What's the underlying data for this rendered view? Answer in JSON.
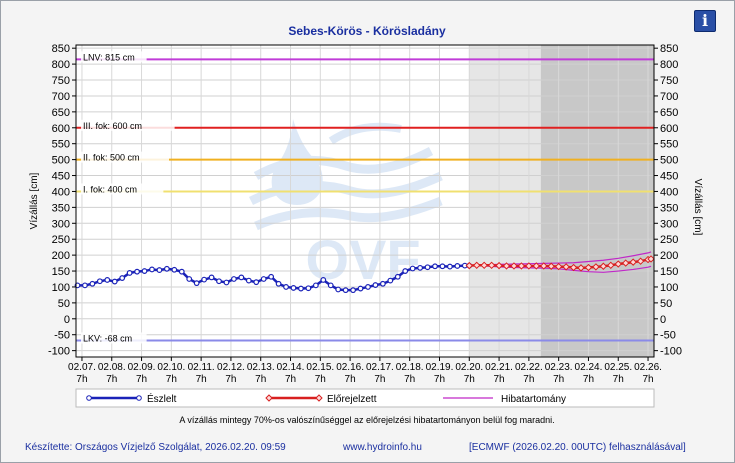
{
  "chart_data": {
    "type": "line",
    "title": "Sebes-Körös - Körösladány",
    "ylabel_left": "Vízállás [cm]",
    "ylabel_right": "Vízállás [cm]",
    "ylim": [
      -120,
      860
    ],
    "yticks": [
      850,
      800,
      750,
      700,
      650,
      600,
      550,
      500,
      450,
      400,
      350,
      300,
      250,
      200,
      150,
      100,
      50,
      0,
      -50,
      -100
    ],
    "xlim": [
      -0.2,
      19.2
    ],
    "xtick_labels": [
      {
        "date": "02.07.",
        "hour": "7h"
      },
      {
        "date": "02.08.",
        "hour": "7h"
      },
      {
        "date": "02.09.",
        "hour": "7h"
      },
      {
        "date": "02.10.",
        "hour": "7h"
      },
      {
        "date": "02.11.",
        "hour": "7h"
      },
      {
        "date": "02.12.",
        "hour": "7h"
      },
      {
        "date": "02.13.",
        "hour": "7h"
      },
      {
        "date": "02.14.",
        "hour": "7h"
      },
      {
        "date": "02.15.",
        "hour": "7h"
      },
      {
        "date": "02.16.",
        "hour": "7h"
      },
      {
        "date": "02.17.",
        "hour": "7h"
      },
      {
        "date": "02.18.",
        "hour": "7h"
      },
      {
        "date": "02.19.",
        "hour": "7h"
      },
      {
        "date": "02.20.",
        "hour": "7h"
      },
      {
        "date": "02.21.",
        "hour": "7h"
      },
      {
        "date": "02.22.",
        "hour": "7h"
      },
      {
        "date": "02.23.",
        "hour": "7h"
      },
      {
        "date": "02.24.",
        "hour": "7h"
      },
      {
        "date": "02.25.",
        "hour": "7h"
      },
      {
        "date": "02.26.",
        "hour": "7h"
      }
    ],
    "shaded_regions": [
      {
        "from": 13.0,
        "to": 15.4,
        "color": "#e6e6e6"
      },
      {
        "from": 15.4,
        "to": 19.2,
        "color": "#c8c8c8"
      }
    ],
    "thresholds": [
      {
        "label": "LNV: 815 cm",
        "value": 815,
        "color": "#c03cd8"
      },
      {
        "label": "III. fok: 600 cm",
        "value": 600,
        "color": "#e02020"
      },
      {
        "label": "II. fok: 500 cm",
        "value": 500,
        "color": "#f0b020"
      },
      {
        "label": "I. fok: 400 cm",
        "value": 400,
        "color": "#f0e070"
      },
      {
        "label": "LKV: -68 cm",
        "value": -68,
        "color": "#8a8ae8"
      }
    ],
    "series": [
      {
        "name": "Észlelt",
        "color": "#1a22b8",
        "x": [
          -0.15,
          0.1,
          0.35,
          0.6,
          0.85,
          1.1,
          1.35,
          1.6,
          1.85,
          2.1,
          2.35,
          2.6,
          2.85,
          3.1,
          3.35,
          3.6,
          3.85,
          4.1,
          4.35,
          4.6,
          4.85,
          5.1,
          5.35,
          5.6,
          5.85,
          6.1,
          6.35,
          6.6,
          6.85,
          7.1,
          7.35,
          7.6,
          7.85,
          8.1,
          8.35,
          8.6,
          8.85,
          9.1,
          9.35,
          9.6,
          9.85,
          10.1,
          10.35,
          10.6,
          10.85,
          11.1,
          11.35,
          11.6,
          11.85,
          12.1,
          12.35,
          12.6,
          12.85,
          13.0
        ],
        "y": [
          105,
          105,
          110,
          118,
          122,
          117,
          128,
          144,
          148,
          150,
          155,
          153,
          157,
          154,
          148,
          125,
          112,
          123,
          130,
          118,
          114,
          125,
          130,
          120,
          115,
          125,
          132,
          110,
          100,
          97,
          95,
          96,
          105,
          122,
          105,
          92,
          90,
          90,
          95,
          100,
          106,
          110,
          120,
          132,
          150,
          158,
          160,
          162,
          165,
          165,
          164,
          166,
          167,
          167
        ]
      },
      {
        "name": "Előrejelzett",
        "color": "#d82020",
        "x": [
          13.0,
          13.25,
          13.5,
          13.75,
          14.0,
          14.25,
          14.5,
          14.75,
          15.0,
          15.25,
          15.5,
          15.75,
          16.0,
          16.25,
          16.5,
          16.75,
          17.0,
          17.25,
          17.5,
          17.75,
          18.0,
          18.25,
          18.5,
          18.75,
          19.0,
          19.1
        ],
        "y": [
          167,
          168,
          168,
          168,
          167,
          166,
          166,
          166,
          166,
          166,
          166,
          165,
          164,
          163,
          161,
          160,
          161,
          163,
          165,
          168,
          172,
          175,
          178,
          181,
          186,
          188
        ]
      },
      {
        "name": "Hibatartomány",
        "color": "#c028c8",
        "x": [
          13.0,
          13.5,
          14.0,
          14.5,
          15.0,
          15.5,
          16.0,
          16.5,
          17.0,
          17.5,
          18.0,
          18.5,
          19.0,
          19.1
        ],
        "upper": [
          167,
          170,
          171,
          172,
          173,
          174,
          175,
          176,
          180,
          184,
          190,
          198,
          207,
          210
        ],
        "lower": [
          167,
          166,
          163,
          161,
          160,
          159,
          157,
          152,
          148,
          146,
          150,
          155,
          162,
          165
        ]
      }
    ],
    "legend_position": "bottom"
  },
  "note": "A vízállás mintegy 70%-os valószínűséggel az előrejelzési hibatartományon belül fog maradni.",
  "footer": {
    "author": "Készítette: Országos Vízjelző Szolgálat, 2026.02.20. 09:59",
    "website": "www.hydroinfo.hu",
    "model": "[ECMWF (2026.02.20. 00UTC) felhasználásával]"
  },
  "watermark_text": "OVF",
  "info_button": {
    "label": "i",
    "icon": "info-icon"
  }
}
